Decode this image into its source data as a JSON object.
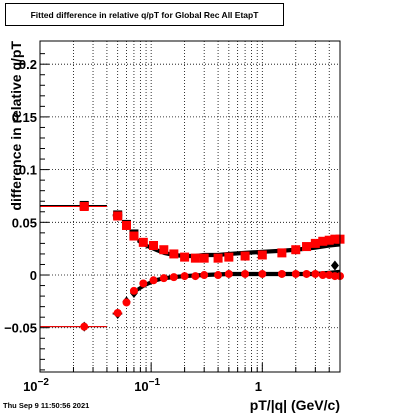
{
  "chart_data": {
    "type": "scatter",
    "title": "Fitted difference in relative q/pT for Global Rec All EtapT",
    "xlabel": "pT/|q| (GeV/c)",
    "ylabel": "difference in relative q/pT",
    "x_scale": "log",
    "xlim": [
      0.01,
      5.0
    ],
    "ylim": [
      -0.092,
      0.222
    ],
    "grid": true,
    "x_ticks": [
      {
        "value": 0.01,
        "base": "10",
        "exp": "−2"
      },
      {
        "value": 0.1,
        "base": "10",
        "exp": "−1"
      },
      {
        "value": 1,
        "base": "1",
        "exp": ""
      }
    ],
    "y_ticks": [
      {
        "value": -0.05,
        "label": "−0.05"
      },
      {
        "value": 0,
        "label": "0"
      },
      {
        "value": 0.05,
        "label": "0.05"
      },
      {
        "value": 0.1,
        "label": "0.1"
      },
      {
        "value": 0.15,
        "label": "0.15"
      },
      {
        "value": 0.2,
        "label": "0.2"
      }
    ],
    "series": [
      {
        "marker": "square",
        "color": "#000000",
        "points": [
          {
            "x": 0.025,
            "y": 0.066,
            "x_err": 0.015
          },
          {
            "x": 0.05,
            "y": 0.057,
            "x_err": 0.005
          },
          {
            "x": 0.06,
            "y": 0.048,
            "x_err": 0.003
          },
          {
            "x": 0.07,
            "y": 0.039,
            "x_err": 0.003
          }
        ],
        "band": {
          "x": [
            0.075,
            0.09,
            0.11,
            0.13,
            0.16,
            0.2,
            0.25,
            0.3,
            0.4,
            0.5,
            0.7,
            1.0,
            1.5,
            2.0,
            3.0,
            4.0,
            5.0
          ],
          "y": [
            0.033,
            0.028,
            0.024,
            0.021,
            0.019,
            0.018,
            0.018,
            0.019,
            0.019,
            0.02,
            0.021,
            0.022,
            0.023,
            0.024,
            0.026,
            0.028,
            0.029
          ],
          "half_width": 0.002
        }
      },
      {
        "marker": "square",
        "color": "#ff0000",
        "points": [
          {
            "x": 0.025,
            "y": 0.065,
            "x_err": 0.015
          },
          {
            "x": 0.05,
            "y": 0.056,
            "x_err": 0.005
          },
          {
            "x": 0.06,
            "y": 0.047,
            "x_err": 0.003
          },
          {
            "x": 0.07,
            "y": 0.037,
            "x_err": 0.003
          },
          {
            "x": 0.085,
            "y": 0.031
          },
          {
            "x": 0.105,
            "y": 0.028
          },
          {
            "x": 0.13,
            "y": 0.024
          },
          {
            "x": 0.16,
            "y": 0.02
          },
          {
            "x": 0.2,
            "y": 0.017
          },
          {
            "x": 0.25,
            "y": 0.016
          },
          {
            "x": 0.3,
            "y": 0.016
          },
          {
            "x": 0.4,
            "y": 0.016
          },
          {
            "x": 0.5,
            "y": 0.017
          },
          {
            "x": 0.7,
            "y": 0.018
          },
          {
            "x": 1.0,
            "y": 0.019
          },
          {
            "x": 1.5,
            "y": 0.021
          },
          {
            "x": 2.0,
            "y": 0.024
          },
          {
            "x": 2.5,
            "y": 0.027
          },
          {
            "x": 3.0,
            "y": 0.03
          },
          {
            "x": 3.5,
            "y": 0.032
          },
          {
            "x": 4.0,
            "y": 0.033
          },
          {
            "x": 4.5,
            "y": 0.034
          },
          {
            "x": 5.0,
            "y": 0.034
          }
        ]
      },
      {
        "marker": "diamond",
        "color": "#000000",
        "points": [
          {
            "x": 0.025,
            "y": -0.049,
            "x_err": 0.015
          },
          {
            "x": 0.05,
            "y": -0.037,
            "x_err": 0.005
          },
          {
            "x": 0.06,
            "y": -0.025
          },
          {
            "x": 0.07,
            "y": -0.017
          },
          {
            "x": 4.5,
            "y": 0.009
          }
        ],
        "band": {
          "x": [
            0.075,
            0.09,
            0.11,
            0.13,
            0.16,
            0.2,
            0.3,
            0.5,
            1.0,
            2.0,
            3.0,
            4.0,
            5.0
          ],
          "y": [
            -0.014,
            -0.009,
            -0.005,
            -0.003,
            -0.002,
            -0.001,
            0.0,
            0.001,
            0.001,
            0.001,
            0.001,
            0.002,
            0.003
          ],
          "half_width": 0.002
        }
      },
      {
        "marker": "circle",
        "color": "#ff0000",
        "points": [
          {
            "x": 0.025,
            "y": -0.049,
            "x_err": 0.015
          },
          {
            "x": 0.05,
            "y": -0.036,
            "x_err": 0.005
          },
          {
            "x": 0.06,
            "y": -0.026
          },
          {
            "x": 0.07,
            "y": -0.015
          },
          {
            "x": 0.085,
            "y": -0.008
          },
          {
            "x": 0.105,
            "y": -0.005
          },
          {
            "x": 0.13,
            "y": -0.003
          },
          {
            "x": 0.16,
            "y": -0.002
          },
          {
            "x": 0.2,
            "y": -0.001
          },
          {
            "x": 0.25,
            "y": -0.001
          },
          {
            "x": 0.3,
            "y": 0.0
          },
          {
            "x": 0.4,
            "y": 0.0
          },
          {
            "x": 0.5,
            "y": 0.001
          },
          {
            "x": 0.7,
            "y": 0.001
          },
          {
            "x": 1.0,
            "y": 0.001
          },
          {
            "x": 1.5,
            "y": 0.001
          },
          {
            "x": 2.0,
            "y": 0.001
          },
          {
            "x": 2.5,
            "y": 0.001
          },
          {
            "x": 3.0,
            "y": 0.001
          },
          {
            "x": 3.5,
            "y": 0.0
          },
          {
            "x": 4.0,
            "y": 0.0
          },
          {
            "x": 4.5,
            "y": -0.001
          },
          {
            "x": 5.0,
            "y": -0.001
          }
        ]
      }
    ]
  },
  "footer": {
    "timestamp": "Thu Sep  9 11:50:56 2021"
  }
}
